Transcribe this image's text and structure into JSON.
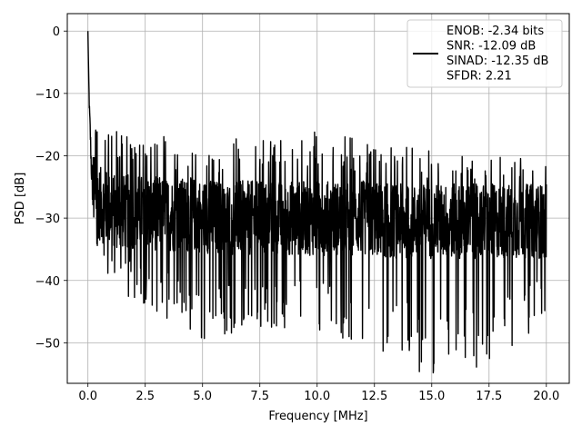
{
  "chart_data": {
    "type": "line",
    "title": "",
    "xlabel": "Frequency [MHz]",
    "ylabel": "PSD [dB]",
    "xlim": [
      -0.9,
      21.0
    ],
    "ylim": [
      -56.5,
      2.8
    ],
    "xticks": [
      0.0,
      2.5,
      5.0,
      7.5,
      10.0,
      12.5,
      15.0,
      17.5,
      20.0
    ],
    "xtick_labels": [
      "0.0",
      "2.5",
      "5.0",
      "7.5",
      "10.0",
      "12.5",
      "15.0",
      "17.5",
      "20.0"
    ],
    "yticks": [
      0,
      -10,
      -20,
      -30,
      -40,
      -50
    ],
    "ytick_labels": [
      "0",
      "−10",
      "−20",
      "−30",
      "−40",
      "−50"
    ],
    "grid": true,
    "legend": {
      "placement": "top-right",
      "lines": [
        "ENOB: -2.34 bits",
        "SNR: -12.09 dB",
        "SINAD: -12.35 dB",
        "SFDR: 2.21"
      ]
    },
    "series": [
      {
        "color": "#000000",
        "description_points": {
          "x": [
            0.0,
            0.03,
            0.06,
            0.1,
            0.15,
            0.2,
            0.35,
            0.6,
            1.2,
            2.4,
            3.6,
            4.8,
            6.0,
            7.2,
            8.4,
            9.6,
            10.8,
            12.0,
            13.2,
            14.4,
            15.6,
            16.8,
            18.0,
            19.2,
            20.0
          ],
          "y": [
            0.0,
            -6.6,
            -12.0,
            -16.0,
            -22.0,
            -25.0,
            -27.0,
            -28.0,
            -29.0,
            -29.0,
            -29.5,
            -29.5,
            -30.0,
            -30.0,
            -30.0,
            -30.0,
            -30.0,
            -30.0,
            -30.5,
            -30.5,
            -30.5,
            -30.5,
            -30.5,
            -30.5,
            -30.5
          ]
        },
        "noise_envelope": {
          "upper_x": [
            0.3,
            1.0,
            2.5,
            5.0,
            7.5,
            10.0,
            12.5,
            15.0,
            17.5,
            20.0
          ],
          "upper_y": [
            -14.0,
            -15.5,
            -16.0,
            -17.5,
            -17.0,
            -15.5,
            -18.0,
            -19.0,
            -19.5,
            -21.0
          ],
          "lower_x": [
            0.3,
            1.0,
            2.5,
            5.0,
            7.5,
            10.0,
            12.5,
            15.0,
            17.5,
            20.0
          ],
          "lower_y": [
            -37.0,
            -42.0,
            -44.0,
            -50.0,
            -48.0,
            -48.0,
            -51.0,
            -56.0,
            -53.5,
            -47.0
          ]
        },
        "num_points": 2048
      }
    ]
  }
}
